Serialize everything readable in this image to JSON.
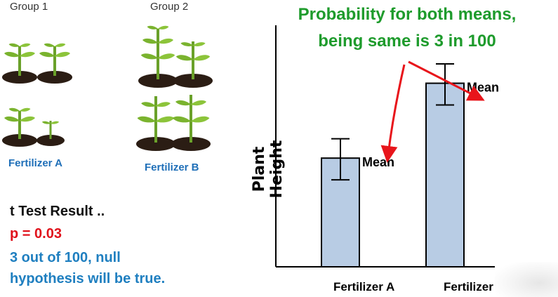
{
  "groups": [
    {
      "label": "Group 1",
      "fertilizer": "Fertilizer A"
    },
    {
      "label": "Group 2",
      "fertilizer": "Fertilizer B"
    }
  ],
  "result": {
    "title": "t Test Result ..",
    "p_value": "p = 0.03",
    "interpretation_line1": "3 out of 100, null",
    "interpretation_line2": "hypothesis will be true."
  },
  "annotation": {
    "line1": "Probability for both means,",
    "line2": "being same is 3 in 100"
  },
  "chart": {
    "ylabel": "Plant Height",
    "mean_label": "Mean"
  },
  "chart_data": {
    "type": "bar",
    "categories": [
      "Fertilizer A",
      "Fertilizer B"
    ],
    "values": [
      45,
      76
    ],
    "error": [
      [
        36,
        53
      ],
      [
        67,
        84
      ]
    ],
    "ylabel": "Plant Height",
    "ylim": [
      0,
      100
    ],
    "grid": false,
    "annotations": [
      "Mean",
      "Mean"
    ]
  },
  "colors": {
    "bar_fill": "#b8cce4",
    "bar_stroke": "#000000",
    "probability_text": "#1e9b2c",
    "p_value": "#e0121b",
    "interpretation": "#1f7fc0",
    "arrow": "#e8151b",
    "category_labels": "#1f5e99",
    "plant_leaf": "#7ab32e",
    "soil": "#2b1d14"
  }
}
